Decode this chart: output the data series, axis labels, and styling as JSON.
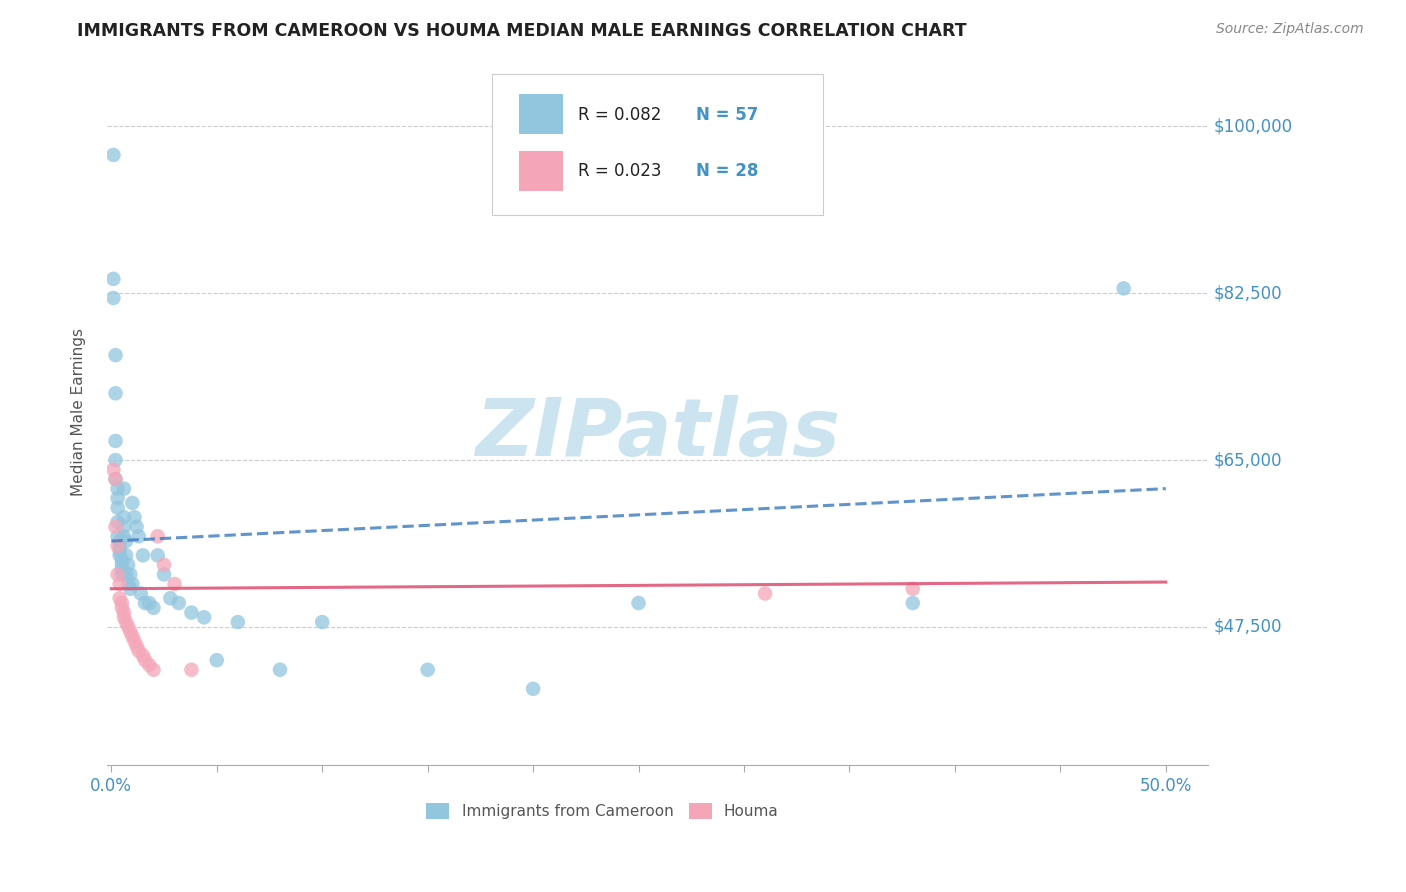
{
  "title": "IMMIGRANTS FROM CAMEROON VS HOUMA MEDIAN MALE EARNINGS CORRELATION CHART",
  "source_text": "Source: ZipAtlas.com",
  "ylabel": "Median Male Earnings",
  "ytick_labels": [
    "$47,500",
    "$65,000",
    "$82,500",
    "$100,000"
  ],
  "ytick_values": [
    47500,
    65000,
    82500,
    100000
  ],
  "ymin": 33000,
  "ymax": 107000,
  "xmin": -0.002,
  "xmax": 0.52,
  "blue_color": "#92c5de",
  "pink_color": "#f4a6b8",
  "blue_line_color": "#3a7abf",
  "pink_line_color": "#e05878",
  "axis_label_color": "#4292c6",
  "title_color": "#222222",
  "grid_color": "#cccccc",
  "watermark_color": "#cce4f0",
  "legend_R1": "R = 0.082",
  "legend_N1": "N = 57",
  "legend_R2": "R = 0.023",
  "legend_N2": "N = 28",
  "blue_scatter_x": [
    0.001,
    0.001,
    0.001,
    0.002,
    0.002,
    0.002,
    0.002,
    0.002,
    0.003,
    0.003,
    0.003,
    0.003,
    0.003,
    0.004,
    0.004,
    0.004,
    0.004,
    0.005,
    0.005,
    0.005,
    0.005,
    0.006,
    0.006,
    0.006,
    0.006,
    0.007,
    0.007,
    0.007,
    0.008,
    0.008,
    0.009,
    0.009,
    0.01,
    0.01,
    0.011,
    0.012,
    0.013,
    0.014,
    0.015,
    0.016,
    0.018,
    0.02,
    0.022,
    0.025,
    0.028,
    0.032,
    0.038,
    0.044,
    0.05,
    0.06,
    0.08,
    0.1,
    0.15,
    0.2,
    0.25,
    0.38,
    0.48
  ],
  "blue_scatter_y": [
    97000,
    84000,
    82000,
    76000,
    72000,
    67000,
    65000,
    63000,
    62000,
    61000,
    60000,
    58500,
    57000,
    56500,
    56000,
    55500,
    55000,
    54500,
    54000,
    53500,
    53000,
    62000,
    59000,
    58000,
    57000,
    56500,
    55000,
    53000,
    54000,
    52000,
    53000,
    51500,
    60500,
    52000,
    59000,
    58000,
    57000,
    51000,
    55000,
    50000,
    50000,
    49500,
    55000,
    53000,
    50500,
    50000,
    49000,
    48500,
    44000,
    48000,
    43000,
    48000,
    43000,
    41000,
    50000,
    50000,
    83000
  ],
  "pink_scatter_x": [
    0.001,
    0.002,
    0.002,
    0.003,
    0.003,
    0.004,
    0.004,
    0.005,
    0.005,
    0.006,
    0.006,
    0.007,
    0.008,
    0.009,
    0.01,
    0.011,
    0.012,
    0.013,
    0.015,
    0.016,
    0.018,
    0.02,
    0.022,
    0.025,
    0.03,
    0.038,
    0.31,
    0.38
  ],
  "pink_scatter_y": [
    64000,
    63000,
    58000,
    56000,
    53000,
    52000,
    50500,
    50000,
    49500,
    49000,
    48500,
    48000,
    47500,
    47000,
    46500,
    46000,
    45500,
    45000,
    44500,
    44000,
    43500,
    43000,
    57000,
    54000,
    52000,
    43000,
    51000,
    51500
  ],
  "blue_trend_x": [
    0.0,
    0.5
  ],
  "blue_trend_y": [
    56500,
    62000
  ],
  "pink_trend_x": [
    0.0,
    0.5
  ],
  "pink_trend_y": [
    51500,
    52200
  ],
  "xtick_positions": [
    0.0,
    0.05,
    0.1,
    0.15,
    0.2,
    0.25,
    0.3,
    0.35,
    0.4,
    0.45,
    0.5
  ]
}
